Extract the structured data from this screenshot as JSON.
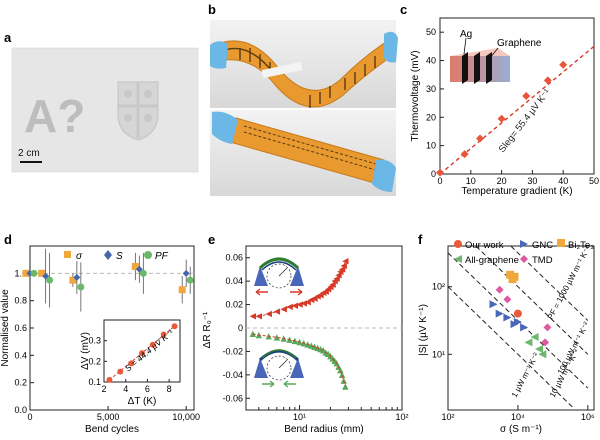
{
  "panel_labels": [
    "a",
    "b",
    "c",
    "d",
    "e",
    "f"
  ],
  "panel_a": {
    "glyph_text": "A?",
    "scale_bar": "2 cm",
    "logo": "crest-logo"
  },
  "panel_b": {
    "images": [
      "flexible-device-twisted-photo",
      "flexible-device-flat-photo"
    ]
  },
  "chart_data": [
    {
      "panel": "c",
      "type": "scatter",
      "xlabel": "Temperature gradient (K)",
      "ylabel": "Thermovoltage (mV)",
      "xlim": [
        0,
        50
      ],
      "ylim": [
        0,
        55
      ],
      "xticks": [
        0,
        10,
        20,
        30,
        40,
        50
      ],
      "yticks": [
        0,
        10,
        20,
        30,
        40,
        50
      ],
      "points": [
        [
          0,
          0.5
        ],
        [
          8,
          7
        ],
        [
          13,
          12.5
        ],
        [
          20,
          19.5
        ],
        [
          28,
          27.5
        ],
        [
          35,
          33
        ],
        [
          40,
          38.5
        ]
      ],
      "fit": {
        "slope": 0.9,
        "label": "Sleg= 55.4 µV K⁻¹"
      },
      "inset_labels": [
        "Ag",
        "Graphene"
      ],
      "colors": {
        "points": "#e8553a",
        "fit": "#d93a2b"
      }
    },
    {
      "panel": "d",
      "type": "scatter",
      "xlabel": "Bend cycles",
      "ylabel": "Normalised value",
      "xlim": [
        0,
        10500
      ],
      "ylim": [
        0.0,
        1.2
      ],
      "xticks": [
        0,
        5000,
        10000
      ],
      "xtick_labels": [
        "0",
        "5,000",
        "10,000"
      ],
      "yticks": [
        0.0,
        0.2,
        0.4,
        0.6,
        0.8,
        1.0
      ],
      "yticks_labels": [
        "0.0",
        "0.2",
        "0.4",
        "0.6",
        "0.8",
        "1.0"
      ],
      "series": [
        {
          "name": "σ",
          "marker": "square",
          "color": "#f0a83c",
          "x": [
            0,
            1000,
            3000,
            7000,
            10000
          ],
          "y": [
            1.0,
            1.0,
            0.95,
            1.05,
            0.88
          ],
          "err": [
            0.02,
            0.02,
            0.05,
            0.1,
            0.1
          ]
        },
        {
          "name": "S",
          "marker": "diamond",
          "color": "#4466aa",
          "x": [
            0,
            1000,
            3000,
            7000,
            10000
          ],
          "y": [
            1.0,
            0.98,
            0.97,
            1.03,
            1.0
          ],
          "err": [
            0.02,
            0.2,
            0.12,
            0.1,
            0.1
          ]
        },
        {
          "name": "PF",
          "marker": "circle",
          "color": "#6bb86b",
          "x": [
            0,
            1000,
            3000,
            7000,
            10000
          ],
          "y": [
            1.0,
            0.95,
            0.9,
            1.0,
            0.95
          ],
          "err": [
            0.02,
            0.2,
            0.18,
            0.15,
            0.1
          ]
        }
      ],
      "reference_line": 1.0,
      "inset": {
        "xlabel": "ΔT (K)",
        "ylabel": "ΔV (mV)",
        "xticks": [
          2,
          4,
          6,
          8
        ],
        "yticks": [
          0.1,
          0.2,
          0.3
        ],
        "xlim": [
          2,
          9
        ],
        "ylim": [
          0.1,
          0.4
        ],
        "points": [
          [
            2.5,
            0.11
          ],
          [
            3.5,
            0.15
          ],
          [
            4.5,
            0.19
          ],
          [
            5.5,
            0.24
          ],
          [
            6.5,
            0.28
          ],
          [
            7.5,
            0.33
          ],
          [
            8.5,
            0.37
          ]
        ],
        "fit_label": "S = 44.4 µV K⁻¹"
      }
    },
    {
      "panel": "e",
      "type": "scatter",
      "xlabel": "Bend radius (mm)",
      "ylabel": "ΔR R₀⁻¹",
      "xscale": "log",
      "xlim": [
        3,
        100
      ],
      "ylim": [
        -0.07,
        0.07
      ],
      "xticks": [
        10,
        100
      ],
      "xtick_labels": [
        "10¹",
        "10²"
      ],
      "yticks": [
        -0.06,
        -0.04,
        -0.02,
        0,
        0.02,
        0.04,
        0.06
      ],
      "ytick_labels": [
        "-0.06",
        "-0.04",
        "-0.02",
        "0",
        "0.02",
        "0.04",
        "0.06"
      ],
      "series": [
        {
          "name": "tensile",
          "marker": "triangle-left",
          "color": "#d83a2a",
          "x": [
            3.5,
            4,
            5,
            6,
            7,
            8,
            9,
            10,
            11,
            12,
            13,
            14,
            15,
            16,
            17,
            18,
            19,
            20,
            21,
            22,
            23,
            24,
            25,
            26,
            27,
            28
          ],
          "y": [
            0.01,
            0.01,
            0.012,
            0.014,
            0.016,
            0.018,
            0.019,
            0.02,
            0.021,
            0.022,
            0.024,
            0.025,
            0.027,
            0.028,
            0.03,
            0.031,
            0.033,
            0.035,
            0.037,
            0.04,
            0.042,
            0.045,
            0.048,
            0.05,
            0.053,
            0.057
          ]
        },
        {
          "name": "compressive",
          "marker": "triangle-up",
          "color": "#58a85a",
          "x": [
            3.5,
            4,
            5,
            6,
            7,
            8,
            9,
            10,
            11,
            12,
            13,
            14,
            15,
            16,
            17,
            18,
            19,
            20,
            21,
            22,
            23,
            24,
            25,
            26,
            27,
            28
          ],
          "y": [
            -0.005,
            -0.006,
            -0.007,
            -0.008,
            -0.009,
            -0.01,
            -0.011,
            -0.012,
            -0.013,
            -0.014,
            -0.015,
            -0.016,
            -0.017,
            -0.018,
            -0.019,
            -0.021,
            -0.022,
            -0.024,
            -0.026,
            -0.028,
            -0.03,
            -0.033,
            -0.036,
            -0.04,
            -0.045,
            -0.05
          ]
        }
      ],
      "colors": {
        "tensile": "#d83a2a",
        "compressive": "#58a85a"
      }
    },
    {
      "panel": "f",
      "type": "scatter",
      "xlabel": "σ (S m⁻¹)",
      "ylabel": "|S| (µV K⁻¹)",
      "xscale": "log",
      "yscale": "log",
      "xlim": [
        100,
        1500000
      ],
      "ylim": [
        1.5,
        400
      ],
      "xticks": [
        100,
        10000,
        1000000
      ],
      "xtick_labels": [
        "10²",
        "10⁴",
        "10⁶"
      ],
      "yticks": [
        10,
        100
      ],
      "ytick_labels": [
        "10¹",
        "10²"
      ],
      "legend": [
        "Our work",
        "GNC",
        "All-graphene",
        "TMD",
        "Bi₂Te₃"
      ],
      "series": [
        {
          "name": "Our work",
          "marker": "circle",
          "color": "#e85a3a",
          "points": [
            [
              10000,
              40
            ]
          ]
        },
        {
          "name": "GNC",
          "marker": "triangle-right",
          "color": "#4a66b8",
          "points": [
            [
              2000,
              55
            ],
            [
              5000,
              35
            ],
            [
              10000,
              30
            ],
            [
              15000,
              25
            ],
            [
              3000,
              40
            ],
            [
              8000,
              28
            ]
          ]
        },
        {
          "name": "All-graphene",
          "marker": "triangle-left",
          "color": "#6bb86b",
          "points": [
            [
              20000,
              15
            ],
            [
              40000,
              12
            ],
            [
              30000,
              18
            ],
            [
              50000,
              10
            ]
          ]
        },
        {
          "name": "TMD",
          "marker": "diamond",
          "color": "#dd5aa0",
          "points": [
            [
              3000,
              90
            ],
            [
              5000,
              65
            ],
            [
              60000,
              15
            ],
            [
              70000,
              25
            ]
          ]
        },
        {
          "name": "Bi₂Te₃",
          "marker": "square",
          "color": "#f0a83c",
          "points": [
            [
              6000,
              150
            ],
            [
              7000,
              130
            ],
            [
              8000,
              140
            ]
          ]
        }
      ],
      "pf_lines": [
        "PF = 1000 µW m⁻¹ K⁻²",
        "100 µW m⁻¹ K⁻²",
        "10 µW m⁻¹ K⁻²",
        "1 µW m⁻¹ K⁻²"
      ]
    }
  ]
}
